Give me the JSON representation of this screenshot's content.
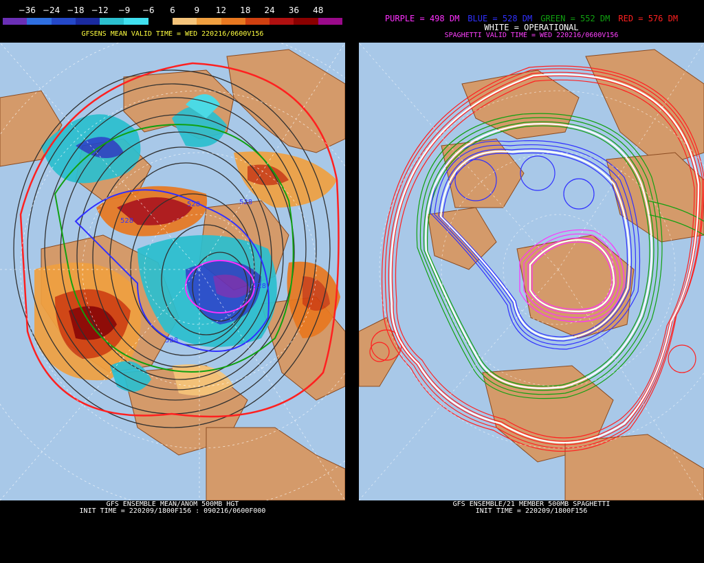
{
  "left_panel": {
    "colorbar": {
      "labels": [
        "−36",
        "−24",
        "−18",
        "−12",
        "−9",
        "−6",
        "6",
        "9",
        "12",
        "18",
        "24",
        "36",
        "48"
      ],
      "colors": [
        "#6a2fb5",
        "#2f6fe0",
        "#2448c8",
        "#1a2aa0",
        "#2bbfcf",
        "#40e0f0",
        "#000000",
        "#f5c47a",
        "#f0a040",
        "#e87820",
        "#d04010",
        "#b01010",
        "#8a0000",
        "#9a0a8a"
      ]
    },
    "title": "GFSENS MEAN VALID TIME = WED 220216/0600V156",
    "contour_labels": [
      "528",
      "528",
      "528",
      "528",
      "528"
    ],
    "footer_line1": "GFS ENSEMBLE MEAN/ANOM 500MB HGT",
    "footer_line2": "INIT TIME = 220209/1800F156 : 090216/0600F000"
  },
  "right_panel": {
    "legend": [
      {
        "text": "PURPLE = 498 DM",
        "color": "#ff30ff"
      },
      {
        "text": "BLUE = 528 DM",
        "color": "#3030ff"
      },
      {
        "text": "GREEN = 552 DM",
        "color": "#10a010"
      },
      {
        "text": "RED = 576 DM",
        "color": "#ff2020"
      }
    ],
    "legend_line2": "WHITE = OPERATIONAL",
    "title": "SPAGHETTI VALID TIME = WED 220216/0600V156",
    "footer_line1": "GFS ENSEMBLE/21 MEMBER 500MB SPAGHETTI",
    "footer_line2": "INIT TIME = 220209/1800F156"
  },
  "colors": {
    "ocean": "#a8c8e8",
    "land": "#d49a6a",
    "land_border": "#8a4a20",
    "background": "#000000",
    "title_yellow": "#ffff40",
    "title_magenta": "#ff40ff"
  }
}
